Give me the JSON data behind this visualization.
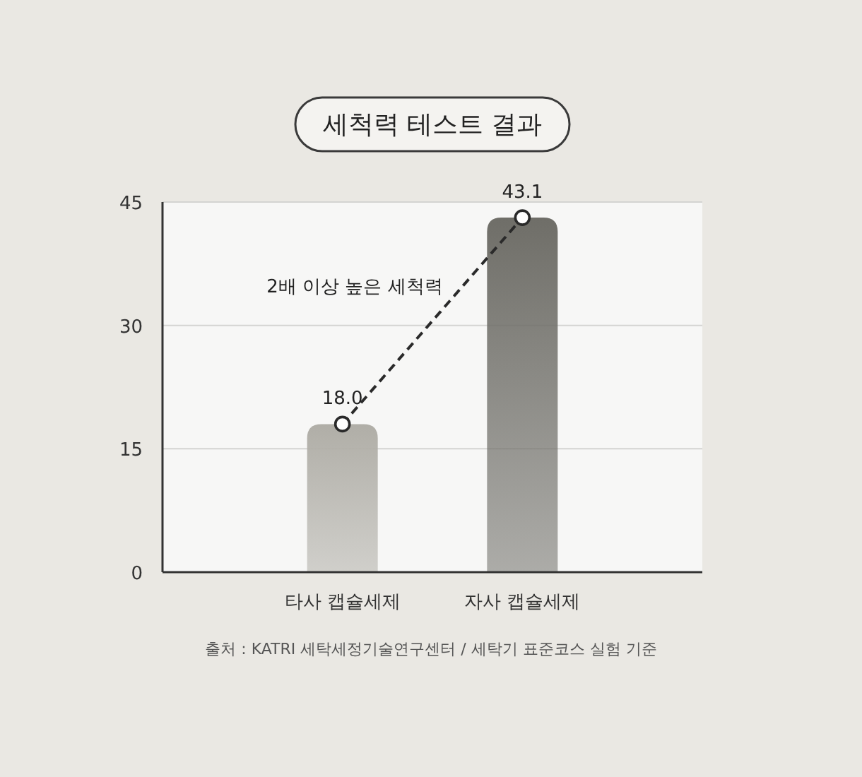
{
  "chart_data": {
    "type": "bar",
    "title": "세척력 테스트 결과",
    "categories": [
      "타사 캡슐세제",
      "자사 캡슐세제"
    ],
    "series": [
      {
        "colors": [
          "#b0aea7",
          "#6f6e68"
        ],
        "values": [
          18.0,
          43.1
        ]
      },
      {
        "type": "line",
        "color": "#2a2a2a",
        "values": [
          18.0,
          43.1
        ],
        "value_labels": [
          "18.0",
          "43.1"
        ]
      }
    ],
    "line_style": "dashed",
    "marker": "circle",
    "ylim": [
      0,
      45
    ],
    "yticks": [
      0,
      15,
      30,
      45
    ],
    "grid": "y",
    "annotations": [
      "2배 이상 높은 세척력",
      "출처 : KATRI 세탁세정기술연구센터 / 세탁기 표준코스 실험 기준"
    ]
  }
}
